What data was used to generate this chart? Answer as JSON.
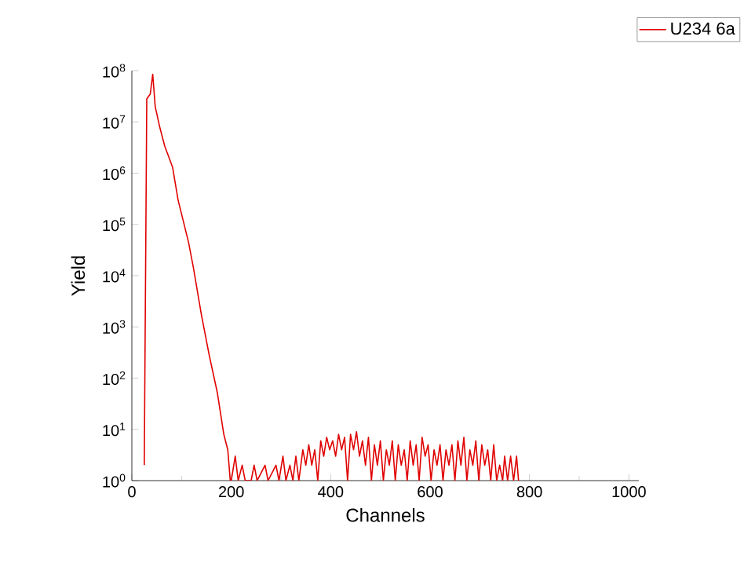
{
  "chart_data": {
    "type": "line",
    "xlabel": "Channels",
    "ylabel": "Yield",
    "log": "y",
    "legend": "top right",
    "grid": false,
    "marker": "none",
    "line_style": "solid",
    "xlim": [
      0,
      1020
    ],
    "xticks": [
      0,
      200,
      400,
      600,
      800,
      1000
    ],
    "ylim": [
      1,
      100000000
    ],
    "yticks": [
      {
        "value": 1,
        "label": "10$^{0}$"
      },
      {
        "value": 10,
        "label": "10$^{1}$"
      },
      {
        "value": 100,
        "label": "10$^{2}$"
      },
      {
        "value": 1000,
        "label": "10$^{3}$"
      },
      {
        "value": 10000,
        "label": "10$^{4}$"
      },
      {
        "value": 100000,
        "label": "10$^{5}$"
      },
      {
        "value": 1000000,
        "label": "10$^{6}$"
      },
      {
        "value": 10000000,
        "label": "10$^{7}$"
      },
      {
        "value": 100000000,
        "label": "10$^{8}$"
      }
    ],
    "series": [
      {
        "name": "U234 6a",
        "color": "#e00000",
        "x": [
          25,
          30,
          37,
          42,
          47,
          56,
          66,
          82,
          93,
          114,
          124,
          140,
          156,
          172,
          185,
          193,
          198,
          200,
          208,
          214,
          222,
          228,
          240,
          246,
          252,
          268,
          274,
          290,
          296,
          304,
          310,
          318,
          324,
          330,
          336,
          344,
          350,
          356,
          362,
          368,
          374,
          380,
          386,
          392,
          398,
          404,
          410,
          416,
          422,
          428,
          434,
          440,
          446,
          452,
          458,
          464,
          470,
          476,
          482,
          488,
          494,
          500,
          506,
          512,
          518,
          524,
          530,
          536,
          542,
          548,
          554,
          560,
          566,
          572,
          578,
          584,
          590,
          596,
          602,
          608,
          614,
          620,
          626,
          632,
          638,
          644,
          650,
          656,
          662,
          668,
          674,
          680,
          686,
          692,
          698,
          704,
          710,
          716,
          722,
          728,
          734,
          740,
          746,
          750,
          756,
          762,
          768,
          774,
          778
        ],
        "values": [
          2,
          28000000,
          35000000,
          85000000,
          20000000,
          8000000,
          3400000,
          1300000,
          300000,
          45000,
          14000,
          1700,
          270,
          52,
          8,
          4,
          1,
          1,
          3,
          1,
          2,
          1,
          1,
          2,
          1,
          2,
          1,
          2,
          1,
          3,
          1,
          2,
          1,
          3,
          1,
          4,
          2,
          5,
          2,
          4,
          1,
          6,
          3,
          7,
          4,
          6,
          3,
          8,
          4,
          7,
          1,
          8,
          4,
          9,
          3,
          6,
          2,
          7,
          1,
          5,
          2,
          6,
          1,
          4,
          2,
          6,
          1,
          5,
          2,
          4,
          1,
          6,
          2,
          5,
          1,
          7,
          3,
          5,
          1,
          4,
          2,
          5,
          1,
          4,
          2,
          5,
          1,
          6,
          2,
          7,
          1,
          4,
          2,
          6,
          1,
          5,
          2,
          4,
          1,
          5,
          1,
          2,
          1,
          3,
          1,
          3,
          1,
          3,
          1
        ]
      }
    ]
  }
}
